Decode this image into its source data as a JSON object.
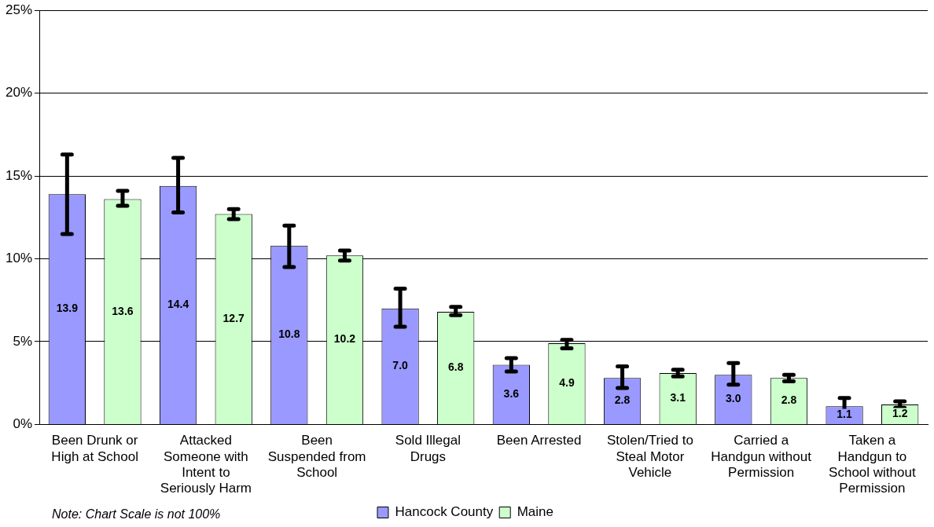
{
  "chart_data": {
    "type": "bar",
    "categories": [
      "Been Drunk or High at School",
      "Attacked Someone with Intent to Seriously Harm",
      "Been Suspended from School",
      "Sold Illegal Drugs",
      "Been Arrested",
      "Stolen/Tried to Steal Motor Vehicle",
      "Carried a Handgun without Permission",
      "Taken a Handgun to School without Permission"
    ],
    "series": [
      {
        "name": "Hancock County",
        "color": "#9999ff",
        "values": [
          13.9,
          14.4,
          10.8,
          7.0,
          3.6,
          2.8,
          3.0,
          1.1
        ],
        "value_labels": [
          "13.9",
          "14.4",
          "10.8",
          "7.0",
          "3.6",
          "2.8",
          "3.0",
          "1.1"
        ],
        "errors": [
          [
            11.5,
            16.3
          ],
          [
            12.8,
            16.1
          ],
          [
            9.5,
            12.0
          ],
          [
            5.9,
            8.2
          ],
          [
            3.2,
            4.0
          ],
          [
            2.2,
            3.5
          ],
          [
            2.4,
            3.7
          ],
          [
            0.6,
            1.6
          ]
        ]
      },
      {
        "name": "Maine",
        "color": "#ccffcc",
        "values": [
          13.6,
          12.7,
          10.2,
          6.8,
          4.9,
          3.1,
          2.8,
          1.2
        ],
        "value_labels": [
          "13.6",
          "12.7",
          "10.2",
          "6.8",
          "4.9",
          "3.1",
          "2.8",
          "1.2"
        ],
        "errors": [
          [
            13.2,
            14.1
          ],
          [
            12.4,
            13.0
          ],
          [
            9.9,
            10.5
          ],
          [
            6.6,
            7.1
          ],
          [
            4.6,
            5.1
          ],
          [
            2.9,
            3.3
          ],
          [
            2.6,
            3.0
          ],
          [
            1.0,
            1.4
          ]
        ]
      }
    ],
    "ylim": [
      0,
      25
    ],
    "yticks": [
      {
        "value": 0,
        "label": "0%"
      },
      {
        "value": 5,
        "label": "5%"
      },
      {
        "value": 10,
        "label": "10%"
      },
      {
        "value": 15,
        "label": "15%"
      },
      {
        "value": 20,
        "label": "20%"
      },
      {
        "value": 25,
        "label": "25%"
      }
    ],
    "grid": "y",
    "legend": "bottom",
    "annotations": [
      "Note: Chart Scale is not 100%"
    ]
  }
}
